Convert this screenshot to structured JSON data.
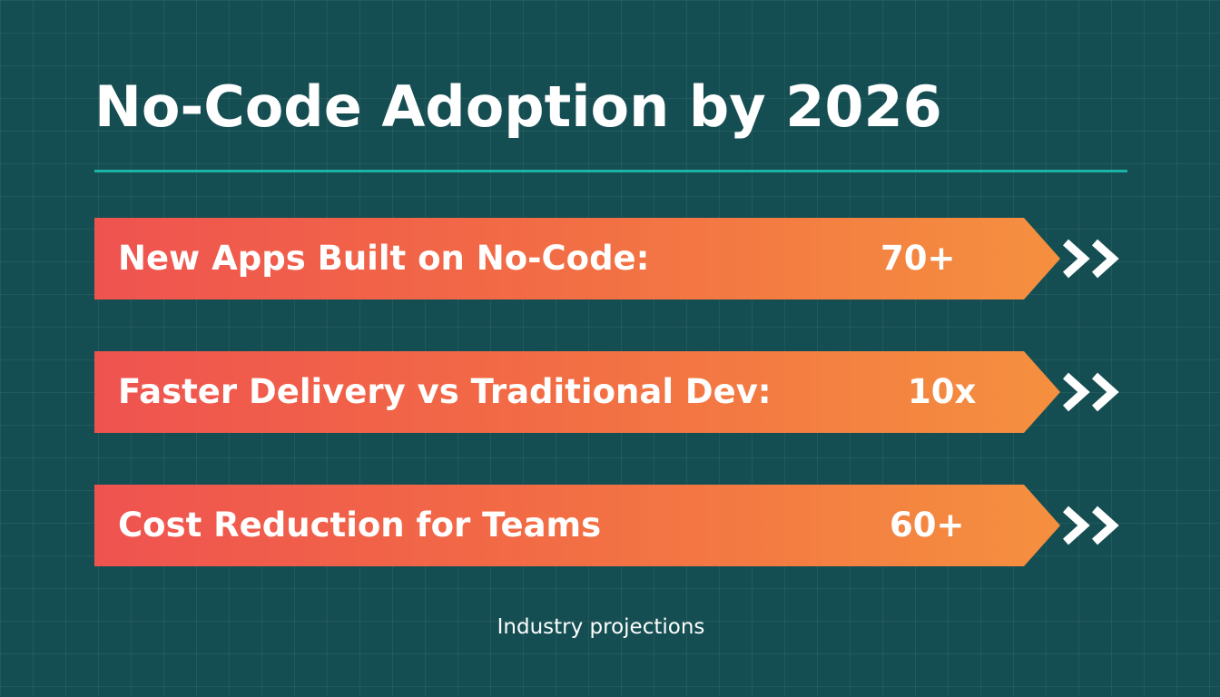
{
  "title": "No-Code Adoption by 2026",
  "stats": [
    {
      "label": "New Apps Built on No-Code:",
      "value": "70+"
    },
    {
      "label": "Faster Delivery vs Traditional Dev:",
      "value": "10x"
    },
    {
      "label": "Cost Reduction for Teams",
      "value": "60+"
    }
  ],
  "footnote": "Industry projections",
  "icons": {
    "arrow": "double-chevron-right-icon"
  },
  "colors": {
    "background": "#154e52",
    "divider": "#1bb3a6",
    "banner_start": "#ef5350",
    "banner_end": "#f5903f",
    "text": "#ffffff"
  }
}
